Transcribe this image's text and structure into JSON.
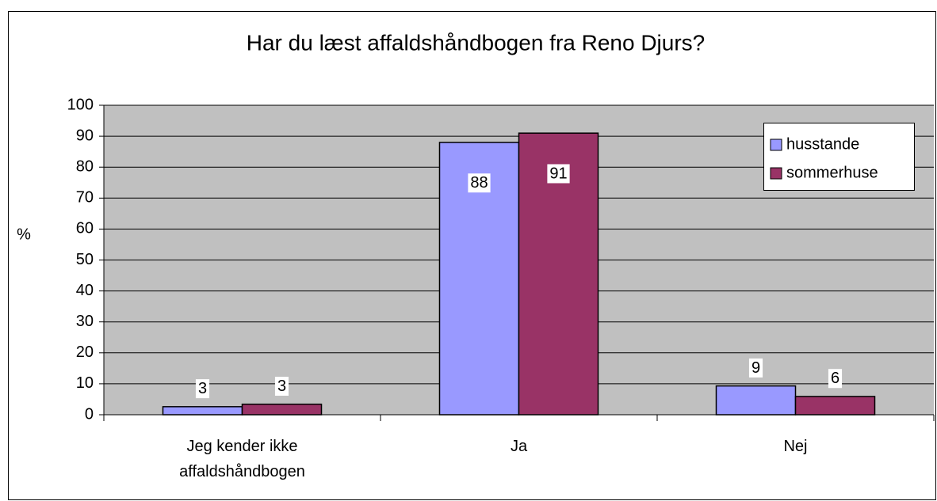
{
  "chart_data": {
    "type": "bar",
    "title": "Har du læst affaldshåndbogen fra Reno Djurs?",
    "y_label": "%",
    "categories": [
      "Jeg kender ikke\naffaldshåndbogen",
      "Ja",
      "Nej"
    ],
    "series": [
      {
        "name": "husstande",
        "color": "#9999ff",
        "values": [
          2.6,
          88,
          9.3
        ],
        "value_labels": [
          "3",
          "88",
          "9"
        ]
      },
      {
        "name": "sommerhuse",
        "color": "#993366",
        "values": [
          3.4,
          91,
          5.9
        ],
        "value_labels": [
          "3",
          "91",
          "6"
        ]
      }
    ],
    "ylim": [
      0,
      100
    ],
    "yticks": [
      0,
      10,
      20,
      30,
      40,
      50,
      60,
      70,
      80,
      90,
      100
    ],
    "grid": true,
    "legend": "upper right",
    "plot_background": "#c0c0c0"
  }
}
